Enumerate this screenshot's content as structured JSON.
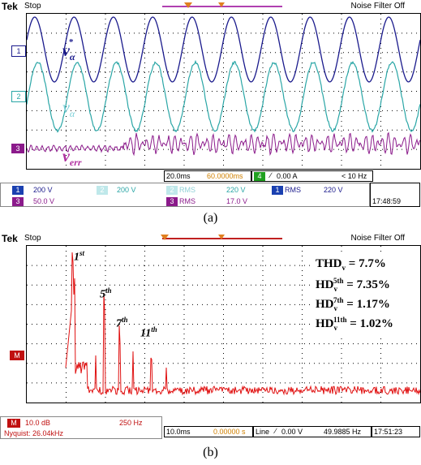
{
  "top": {
    "brand": "Tek",
    "status": "Stop",
    "noise_filter": "Noise Filter Off",
    "labels": {
      "v_alpha_star": "v",
      "v_alpha_star_sub": "α",
      "v_alpha_star_sup": "*",
      "v_alpha": "v",
      "v_alpha_sub": "α",
      "v_err": "v",
      "v_err_sub": "err"
    },
    "markers": {
      "ch1": "1",
      "ch2": "2",
      "ch3": "3"
    },
    "timebase": "20.0ms",
    "trigger_pos": "60.0000ms",
    "trigger_ch": "4",
    "trigger_level": "0.00 A",
    "freq": "< 10 Hz",
    "ch1_scale": "200 V",
    "ch2_scale": "200 V",
    "ch3_scale": "50.0 V",
    "rms_a_label": "RMS",
    "rms_a_value": "220 V",
    "rms_b_label": "RMS",
    "rms_b_value": "17.0 V",
    "rms_c_label": "RMS",
    "rms_c_value": "220 V",
    "time": "17:48:59",
    "caption": "(a)"
  },
  "bottom": {
    "brand": "Tek",
    "status": "Stop",
    "noise_filter": "Noise Filter Off",
    "thd": "THD",
    "thd_sub": "v",
    "thd_val": " = 7.7%",
    "hd5": "HD",
    "hd5_sub": "v",
    "hd5_sup": "5th",
    "hd5_val": " = 7.35%",
    "hd7": "HD",
    "hd7_sub": "v",
    "hd7_sup": "7th",
    "hd7_val": " = 1.17%",
    "hd11": "HD",
    "hd11_sub": "v",
    "hd11_sup": "11th",
    "hd11_val": " = 1.02%",
    "harm1": "1",
    "harm1_sup": "st",
    "harm5": "5",
    "harm5_sup": "th",
    "harm7": "7",
    "harm7_sup": "th",
    "harm11": "11",
    "harm11_sup": "th",
    "m_marker": "M",
    "m_scale": "10.0 dB",
    "m_freq": "250 Hz",
    "nyquist": "Nyquist: 26.04kHz",
    "timebase": "10.0ms",
    "trigger_pos": "0.00000 s",
    "trigger_src": "Line",
    "trigger_level": "0.00 V",
    "freq": "49.9885 Hz",
    "time": "17:51:23",
    "caption": "(b)"
  },
  "colors": {
    "ch1": "#1a1a8c",
    "ch2": "#2aa6a6",
    "ch3": "#8b1a8b",
    "math": "#e01010",
    "ref": "#c060c0"
  }
}
